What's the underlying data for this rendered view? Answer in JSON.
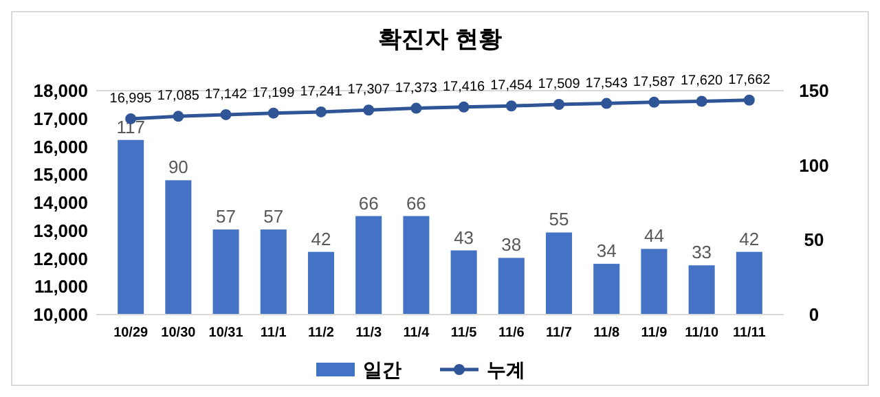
{
  "chart_data": {
    "type": "bar",
    "title": "확진자 현황",
    "categories": [
      "10/29",
      "10/30",
      "10/31",
      "11/1",
      "11/2",
      "11/3",
      "11/4",
      "11/5",
      "11/6",
      "11/7",
      "11/8",
      "11/9",
      "11/10",
      "11/11"
    ],
    "series": [
      {
        "name": "일간",
        "axis": "y2",
        "color": "#4472c4",
        "values": [
          117,
          90,
          57,
          57,
          42,
          66,
          66,
          43,
          38,
          55,
          34,
          44,
          33,
          42
        ],
        "value_labels": [
          "117",
          "90",
          "57",
          "57",
          "42",
          "66",
          "66",
          "43",
          "38",
          "55",
          "34",
          "44",
          "33",
          "42"
        ]
      },
      {
        "name": "누계",
        "type": "line",
        "axis": "y",
        "color": "#2f5597",
        "values": [
          16995,
          17085,
          17142,
          17199,
          17241,
          17307,
          17373,
          17416,
          17454,
          17509,
          17543,
          17587,
          17620,
          17662
        ],
        "value_labels": [
          "16,995",
          "17,085",
          "17,142",
          "17,199",
          "17,241",
          "17,307",
          "17,373",
          "17,416",
          "17,454",
          "17,509",
          "17,543",
          "17,587",
          "17,620",
          "17,662"
        ]
      }
    ],
    "ylim": [
      10000,
      18000
    ],
    "yticks": [
      {
        "value": 10000,
        "label": "10,000"
      },
      {
        "value": 11000,
        "label": "11,000"
      },
      {
        "value": 12000,
        "label": "12,000"
      },
      {
        "value": 13000,
        "label": "13,000"
      },
      {
        "value": 14000,
        "label": "14,000"
      },
      {
        "value": 15000,
        "label": "15,000"
      },
      {
        "value": 16000,
        "label": "16,000"
      },
      {
        "value": 17000,
        "label": "17,000"
      },
      {
        "value": 18000,
        "label": "18,000"
      }
    ],
    "y2lim": [
      0,
      150
    ],
    "y2ticks": [
      0,
      50,
      100,
      150
    ],
    "legend": "bottom",
    "marker": "circle",
    "grid": false
  }
}
